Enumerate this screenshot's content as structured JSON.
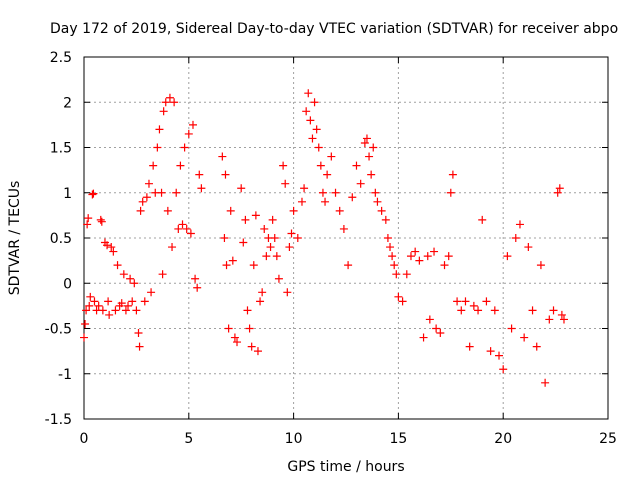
{
  "chart_data": {
    "type": "scatter",
    "title": "Day 172 of 2019, Sidereal Day-to-day VTEC variation (SDTVAR) for receiver abpo",
    "xlabel": "GPS time / hours",
    "ylabel": "SDTVAR / TECUs",
    "xlim": [
      0,
      25
    ],
    "ylim": [
      -1.5,
      2.5
    ],
    "xticks": [
      0,
      5,
      10,
      15,
      20,
      25
    ],
    "yticks": [
      -1.5,
      -1,
      -0.5,
      0,
      0.5,
      1,
      1.5,
      2,
      2.5
    ],
    "xtick_labels": [
      "0",
      "5",
      "10",
      "15",
      "20",
      "25"
    ],
    "ytick_labels": [
      "-1.5",
      "-1",
      "-0.5",
      "0",
      "0.5",
      "1",
      "1.5",
      "2",
      "2.5"
    ],
    "grid": true,
    "marker": "+",
    "color": "#ff0000",
    "series": [
      {
        "name": "SDTVAR",
        "points": [
          [
            0.0,
            -0.6
          ],
          [
            0.05,
            -0.45
          ],
          [
            0.1,
            -0.3
          ],
          [
            0.15,
            0.65
          ],
          [
            0.2,
            0.72
          ],
          [
            0.25,
            -0.25
          ],
          [
            0.3,
            -0.15
          ],
          [
            0.4,
            0.98
          ],
          [
            0.45,
            0.99
          ],
          [
            0.5,
            -0.2
          ],
          [
            0.6,
            -0.3
          ],
          [
            0.7,
            -0.25
          ],
          [
            0.8,
            0.7
          ],
          [
            0.85,
            0.68
          ],
          [
            0.9,
            -0.3
          ],
          [
            1.0,
            0.45
          ],
          [
            1.1,
            0.42
          ],
          [
            1.15,
            -0.2
          ],
          [
            1.2,
            -0.35
          ],
          [
            1.3,
            0.4
          ],
          [
            1.4,
            0.35
          ],
          [
            1.5,
            -0.3
          ],
          [
            1.6,
            0.2
          ],
          [
            1.7,
            -0.25
          ],
          [
            1.8,
            -0.22
          ],
          [
            1.9,
            0.1
          ],
          [
            2.0,
            -0.3
          ],
          [
            2.1,
            -0.25
          ],
          [
            2.2,
            0.05
          ],
          [
            2.3,
            -0.2
          ],
          [
            2.4,
            0.0
          ],
          [
            2.5,
            -0.3
          ],
          [
            2.6,
            -0.55
          ],
          [
            2.65,
            -0.7
          ],
          [
            2.7,
            0.8
          ],
          [
            2.8,
            0.9
          ],
          [
            2.9,
            -0.2
          ],
          [
            3.0,
            0.95
          ],
          [
            3.1,
            1.1
          ],
          [
            3.2,
            -0.1
          ],
          [
            3.3,
            1.3
          ],
          [
            3.4,
            1.0
          ],
          [
            3.5,
            1.5
          ],
          [
            3.6,
            1.7
          ],
          [
            3.7,
            1.0
          ],
          [
            3.75,
            0.1
          ],
          [
            3.8,
            1.9
          ],
          [
            3.9,
            2.0
          ],
          [
            4.0,
            0.8
          ],
          [
            4.1,
            2.05
          ],
          [
            4.2,
            0.4
          ],
          [
            4.3,
            2.0
          ],
          [
            4.4,
            1.0
          ],
          [
            4.5,
            0.6
          ],
          [
            4.6,
            1.3
          ],
          [
            4.7,
            0.65
          ],
          [
            4.8,
            1.5
          ],
          [
            4.9,
            0.6
          ],
          [
            5.0,
            1.65
          ],
          [
            5.1,
            0.55
          ],
          [
            5.2,
            1.75
          ],
          [
            5.3,
            0.05
          ],
          [
            5.4,
            -0.05
          ],
          [
            5.5,
            1.2
          ],
          [
            5.6,
            1.05
          ],
          [
            6.6,
            1.4
          ],
          [
            6.7,
            0.5
          ],
          [
            6.75,
            1.2
          ],
          [
            6.8,
            0.2
          ],
          [
            6.9,
            -0.5
          ],
          [
            7.0,
            0.8
          ],
          [
            7.1,
            0.25
          ],
          [
            7.2,
            -0.6
          ],
          [
            7.3,
            -0.65
          ],
          [
            7.5,
            1.05
          ],
          [
            7.6,
            0.45
          ],
          [
            7.7,
            0.7
          ],
          [
            7.8,
            -0.3
          ],
          [
            7.9,
            -0.5
          ],
          [
            8.0,
            -0.7
          ],
          [
            8.1,
            0.2
          ],
          [
            8.2,
            0.75
          ],
          [
            8.3,
            -0.75
          ],
          [
            8.4,
            -0.2
          ],
          [
            8.5,
            -0.1
          ],
          [
            8.6,
            0.6
          ],
          [
            8.7,
            0.3
          ],
          [
            8.8,
            0.5
          ],
          [
            8.9,
            0.4
          ],
          [
            9.0,
            0.7
          ],
          [
            9.1,
            0.5
          ],
          [
            9.2,
            0.3
          ],
          [
            9.3,
            0.05
          ],
          [
            9.5,
            1.3
          ],
          [
            9.6,
            1.1
          ],
          [
            9.7,
            -0.1
          ],
          [
            9.8,
            0.4
          ],
          [
            9.9,
            0.55
          ],
          [
            10.0,
            0.8
          ],
          [
            10.2,
            0.5
          ],
          [
            10.4,
            0.9
          ],
          [
            10.5,
            1.05
          ],
          [
            10.6,
            1.9
          ],
          [
            10.7,
            2.1
          ],
          [
            10.8,
            1.8
          ],
          [
            10.9,
            1.6
          ],
          [
            11.0,
            2.0
          ],
          [
            11.1,
            1.7
          ],
          [
            11.2,
            1.5
          ],
          [
            11.3,
            1.3
          ],
          [
            11.4,
            1.0
          ],
          [
            11.5,
            0.9
          ],
          [
            11.6,
            1.2
          ],
          [
            11.8,
            1.4
          ],
          [
            12.0,
            1.0
          ],
          [
            12.2,
            0.8
          ],
          [
            12.4,
            0.6
          ],
          [
            12.6,
            0.2
          ],
          [
            12.8,
            0.95
          ],
          [
            13.0,
            1.3
          ],
          [
            13.2,
            1.1
          ],
          [
            13.4,
            1.55
          ],
          [
            13.5,
            1.6
          ],
          [
            13.6,
            1.4
          ],
          [
            13.7,
            1.2
          ],
          [
            13.8,
            1.5
          ],
          [
            13.9,
            1.0
          ],
          [
            14.0,
            0.9
          ],
          [
            14.2,
            0.8
          ],
          [
            14.4,
            0.7
          ],
          [
            14.5,
            0.5
          ],
          [
            14.6,
            0.4
          ],
          [
            14.7,
            0.3
          ],
          [
            14.8,
            0.2
          ],
          [
            14.9,
            0.1
          ],
          [
            15.0,
            -0.15
          ],
          [
            15.2,
            -0.2
          ],
          [
            15.4,
            0.1
          ],
          [
            15.6,
            0.3
          ],
          [
            15.8,
            0.35
          ],
          [
            16.0,
            0.25
          ],
          [
            16.2,
            -0.6
          ],
          [
            16.4,
            0.3
          ],
          [
            16.5,
            -0.4
          ],
          [
            16.7,
            0.35
          ],
          [
            16.8,
            -0.5
          ],
          [
            17.0,
            -0.55
          ],
          [
            17.2,
            0.2
          ],
          [
            17.4,
            0.3
          ],
          [
            17.5,
            1.0
          ],
          [
            17.6,
            1.2
          ],
          [
            17.8,
            -0.2
          ],
          [
            18.0,
            -0.3
          ],
          [
            18.2,
            -0.2
          ],
          [
            18.4,
            -0.7
          ],
          [
            18.6,
            -0.25
          ],
          [
            18.8,
            -0.3
          ],
          [
            19.0,
            0.7
          ],
          [
            19.2,
            -0.2
          ],
          [
            19.4,
            -0.75
          ],
          [
            19.6,
            -0.3
          ],
          [
            19.8,
            -0.8
          ],
          [
            20.0,
            -0.95
          ],
          [
            20.2,
            0.3
          ],
          [
            20.4,
            -0.5
          ],
          [
            20.6,
            0.5
          ],
          [
            20.8,
            0.65
          ],
          [
            21.0,
            -0.6
          ],
          [
            21.2,
            0.4
          ],
          [
            21.4,
            -0.3
          ],
          [
            21.6,
            -0.7
          ],
          [
            21.8,
            0.2
          ],
          [
            22.0,
            -1.1
          ],
          [
            22.2,
            -0.4
          ],
          [
            22.4,
            -0.3
          ],
          [
            22.6,
            1.0
          ],
          [
            22.7,
            1.05
          ],
          [
            22.8,
            -0.35
          ],
          [
            22.9,
            -0.4
          ]
        ]
      }
    ]
  }
}
